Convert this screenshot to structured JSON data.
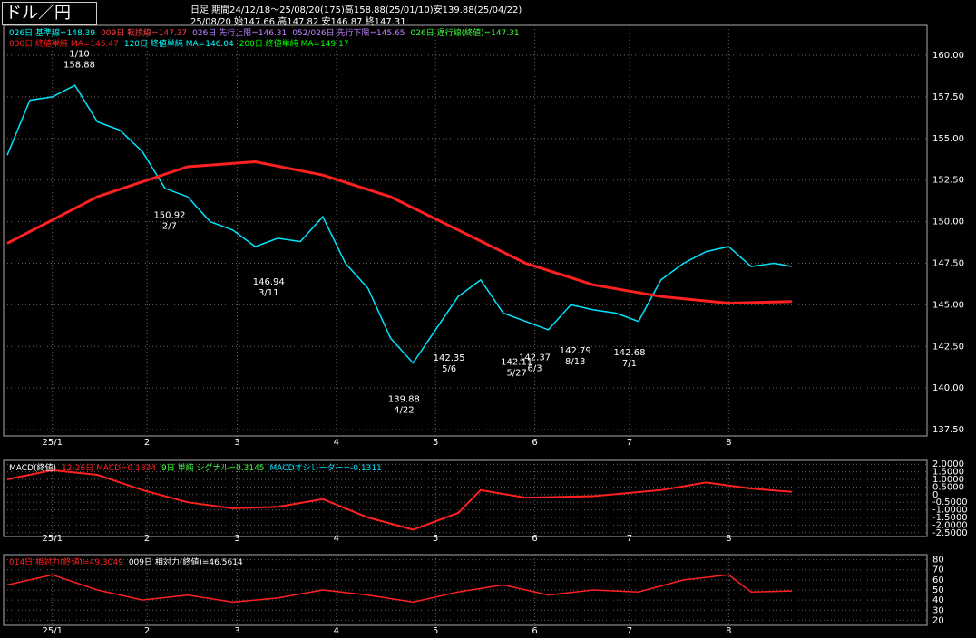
{
  "header": {
    "title": "ドル／円",
    "period": "日足",
    "range": "期間24/12/18～25/08/20(175)高158.88(25/01/10)安139.88(25/04/22)",
    "date": "25/08/20",
    "ohlc": "始147.66 高147.82 安146.87 終147.31"
  },
  "chart_data": [
    {
      "type": "line",
      "legend": [
        [
          {
            "text": "026日 基準線=148.39",
            "color": "#00ffff"
          },
          {
            "text": "009日 転換線=147.37",
            "color": "#ff4040"
          },
          {
            "text": "026日 先行上限=146.31",
            "color": "#c080ff"
          },
          {
            "text": "052/026日 先行下限=145.65",
            "color": "#c080ff"
          },
          {
            "text": "026日 遅行線(終値)=147.31",
            "color": "#40ff40"
          }
        ],
        [
          {
            "text": "030日 終値単純 MA=145.47",
            "color": "#ff2020"
          },
          {
            "text": "120日 終値単純 MA=146.04",
            "color": "#00ffff"
          },
          {
            "text": "200日 終値単純 MA=149.17",
            "color": "#00ff00"
          }
        ]
      ],
      "xlim": [
        0,
        204
      ],
      "xticks": [
        {
          "value": 10,
          "label": "25/1"
        },
        {
          "value": 31,
          "label": "2"
        },
        {
          "value": 51,
          "label": "3"
        },
        {
          "value": 73,
          "label": "4"
        },
        {
          "value": 95,
          "label": "5"
        },
        {
          "value": 117,
          "label": "6"
        },
        {
          "value": 138,
          "label": "7"
        },
        {
          "value": 160,
          "label": "8"
        }
      ],
      "ylim": [
        137.12,
        161.8
      ],
      "yticks": [
        {
          "value": 137.5,
          "label": "137.50"
        },
        {
          "value": 140,
          "label": "140.00"
        },
        {
          "value": 142.5,
          "label": "142.50"
        },
        {
          "value": 145,
          "label": "145.00"
        },
        {
          "value": 147.5,
          "label": "147.50"
        },
        {
          "value": 150,
          "label": "150.00"
        },
        {
          "value": 152.5,
          "label": "152.50"
        },
        {
          "value": 155,
          "label": "155.00"
        },
        {
          "value": 157.5,
          "label": "157.50"
        },
        {
          "value": 160,
          "label": "160.00"
        }
      ],
      "series": [
        {
          "color": "#00e5ff",
          "width": 1.5,
          "x": [
            0,
            5,
            10,
            15,
            20,
            25,
            30,
            35,
            40,
            45,
            50,
            55,
            60,
            65,
            70,
            75,
            80,
            85,
            90,
            95,
            100,
            105,
            110,
            115,
            120,
            125,
            130,
            135,
            140,
            145,
            150,
            155,
            160,
            165,
            170,
            174
          ],
          "values": [
            154.0,
            157.3,
            157.5,
            158.2,
            156.0,
            155.5,
            154.2,
            152.0,
            151.5,
            150.0,
            149.5,
            148.5,
            149.0,
            148.8,
            150.3,
            147.5,
            146.0,
            143.0,
            141.5,
            143.5,
            145.5,
            146.5,
            144.5,
            144.0,
            143.5,
            145.0,
            144.7,
            144.5,
            144.0,
            146.5,
            147.5,
            148.2,
            148.5,
            147.3,
            147.5,
            147.31
          ]
        },
        {
          "color": "#ff2020",
          "width": 3,
          "x": [
            0,
            20,
            40,
            55,
            70,
            85,
            100,
            115,
            130,
            145,
            160,
            174
          ],
          "values": [
            148.7,
            151.5,
            153.3,
            153.6,
            152.8,
            151.5,
            149.5,
            147.5,
            146.2,
            145.5,
            145.1,
            145.2
          ]
        }
      ],
      "annotations": [
        {
          "label": "1/10",
          "x": 16,
          "y": 158.88,
          "color": "#ff3030"
        },
        {
          "label": "2/7",
          "x": 36,
          "y": 150.92,
          "color": "#40e0ff"
        },
        {
          "label": "3/11",
          "x": 58,
          "y": 146.94,
          "color": "#40e0ff"
        },
        {
          "label": "4/22",
          "x": 88,
          "y": 139.88,
          "color": "#40e0ff"
        },
        {
          "label": "5/6",
          "x": 98,
          "y": 142.35,
          "color": "#40e0ff"
        },
        {
          "label": "5/27",
          "x": 113,
          "y": 142.11,
          "color": "#40e0ff"
        },
        {
          "label": "6/3",
          "x": 117,
          "y": 142.37,
          "color": "#40e0ff"
        },
        {
          "label": "8/13",
          "x": 126,
          "y": 142.79,
          "color": "#40e0ff"
        },
        {
          "label": "7/1",
          "x": 138,
          "y": 142.68,
          "color": "#40e0ff"
        }
      ]
    },
    {
      "type": "line",
      "legend": [
        [
          {
            "text": "MACD(終値)",
            "color": "#ffffff"
          },
          {
            "text": "12-26日 MACD=0.1834",
            "color": "#ff2020"
          },
          {
            "text": "9日 単純 シグナル=0.3145",
            "color": "#40ff40"
          },
          {
            "text": "MACDオシレーター=-0.1311",
            "color": "#00e5ff"
          }
        ]
      ],
      "xlim": [
        0,
        204
      ],
      "xticks": [
        {
          "value": 10,
          "label": "25/1"
        },
        {
          "value": 31,
          "label": "2"
        },
        {
          "value": 51,
          "label": "3"
        },
        {
          "value": 73,
          "label": "4"
        },
        {
          "value": 95,
          "label": "5"
        },
        {
          "value": 117,
          "label": "6"
        },
        {
          "value": 138,
          "label": "7"
        },
        {
          "value": 160,
          "label": "8"
        }
      ],
      "ylim": [
        -2.75,
        2.25
      ],
      "yticks": [
        {
          "value": -2.5,
          "label": "-2.5000"
        },
        {
          "value": -2,
          "label": "-2.0000"
        },
        {
          "value": -1.5,
          "label": "-1.5000"
        },
        {
          "value": -1,
          "label": "-1.0000"
        },
        {
          "value": -0.5,
          "label": "-0.5000"
        },
        0,
        {
          "value": 0.5,
          "label": "0.5000"
        },
        {
          "value": 1,
          "label": "1.0000"
        },
        {
          "value": 1.5,
          "label": "1.5000"
        },
        {
          "value": 2,
          "label": "2.0000"
        }
      ],
      "series": [
        {
          "color": "#ff2020",
          "width": 2,
          "x": [
            0,
            10,
            20,
            30,
            40,
            50,
            60,
            70,
            80,
            90,
            100,
            105,
            115,
            130,
            145,
            155,
            165,
            174
          ],
          "values": [
            1.0,
            1.6,
            1.3,
            0.3,
            -0.5,
            -0.9,
            -0.8,
            -0.3,
            -1.5,
            -2.3,
            -1.2,
            0.3,
            -0.2,
            -0.1,
            0.3,
            0.8,
            0.4,
            0.18
          ]
        }
      ]
    },
    {
      "type": "line",
      "legend": [
        [
          {
            "text": "014日 相対力(終値)=49.3049",
            "color": "#ff2020"
          },
          {
            "text": "009日 相対力(終値)=46.5614",
            "color": "#ffffff"
          }
        ]
      ],
      "xlim": [
        0,
        204
      ],
      "xticks": [
        {
          "value": 10,
          "label": "25/1"
        },
        {
          "value": 31,
          "label": "2"
        },
        {
          "value": 51,
          "label": "3"
        },
        {
          "value": 73,
          "label": "4"
        },
        {
          "value": 95,
          "label": "5"
        },
        {
          "value": 117,
          "label": "6"
        },
        {
          "value": 138,
          "label": "7"
        },
        {
          "value": 160,
          "label": "8"
        }
      ],
      "ylim": [
        15,
        85
      ],
      "yticks": [
        20,
        30,
        40,
        50,
        60,
        70,
        80
      ],
      "series": [
        {
          "color": "#ff2020",
          "width": 1.5,
          "x": [
            0,
            10,
            20,
            30,
            40,
            50,
            60,
            70,
            80,
            90,
            100,
            110,
            120,
            130,
            140,
            150,
            160,
            165,
            174
          ],
          "values": [
            55,
            65,
            50,
            40,
            45,
            38,
            42,
            50,
            45,
            38,
            48,
            55,
            45,
            50,
            48,
            60,
            65,
            48,
            49
          ]
        }
      ]
    }
  ]
}
